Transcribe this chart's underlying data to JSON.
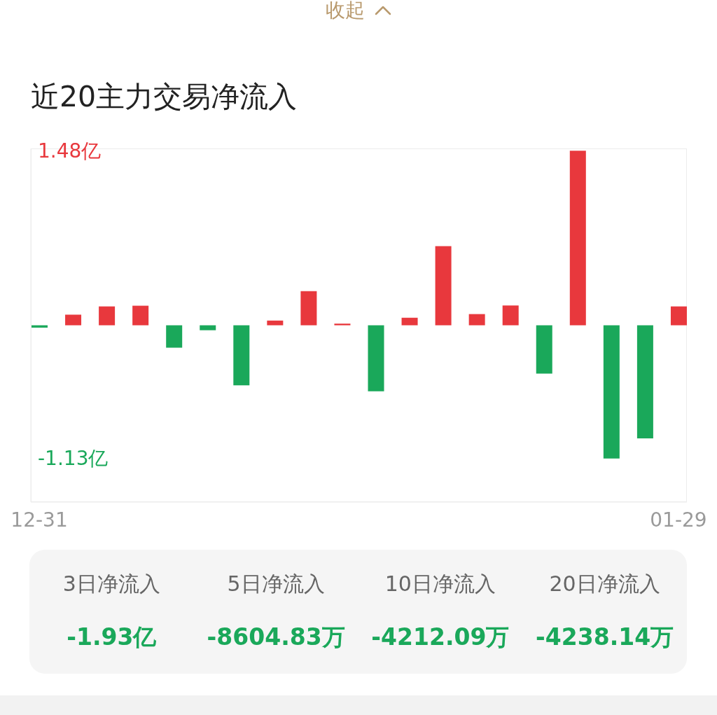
{
  "chart_data": [
    {
      "type": "bar",
      "title": "近20主力交易净流入",
      "annotations": [
        "收起"
      ],
      "categories": [
        "12-31",
        null,
        null,
        null,
        null,
        null,
        null,
        null,
        null,
        null,
        null,
        null,
        null,
        null,
        null,
        null,
        null,
        null,
        null,
        "01-29"
      ],
      "values": [
        -0.02,
        0.09,
        0.16,
        0.166,
        -0.19,
        -0.042,
        -0.51,
        0.04,
        0.29,
        0.014,
        -0.56,
        0.064,
        0.672,
        0.095,
        0.168,
        -0.41,
        1.48,
        -1.13,
        -0.96,
        0.16
      ],
      "colors": [
        "#1aa85a",
        "#e8383d",
        "#e8383d",
        "#e8383d",
        "#1aa85a",
        "#1aa85a",
        "#1aa85a",
        "#e8383d",
        "#e8383d",
        "#e8383d",
        "#1aa85a",
        "#e8383d",
        "#e8383d",
        "#e8383d",
        "#e8383d",
        "#1aa85a",
        "#e8383d",
        "#1aa85a",
        "#1aa85a",
        "#e8383d"
      ],
      "ylim": [
        -1.5,
        1.5
      ],
      "yticks": [
        {
          "value": 1.48,
          "label": "1.48亿"
        },
        {
          "value": -1.13,
          "label": "-1.13亿"
        }
      ]
    },
    {
      "type": "other",
      "categories": [
        "3日净流入",
        "5日净流入",
        "10日净流入",
        "20日净流入"
      ],
      "value_labels": [
        "-1.93亿",
        "-8604.83万",
        "-4212.09万",
        "-4238.14万"
      ]
    }
  ]
}
